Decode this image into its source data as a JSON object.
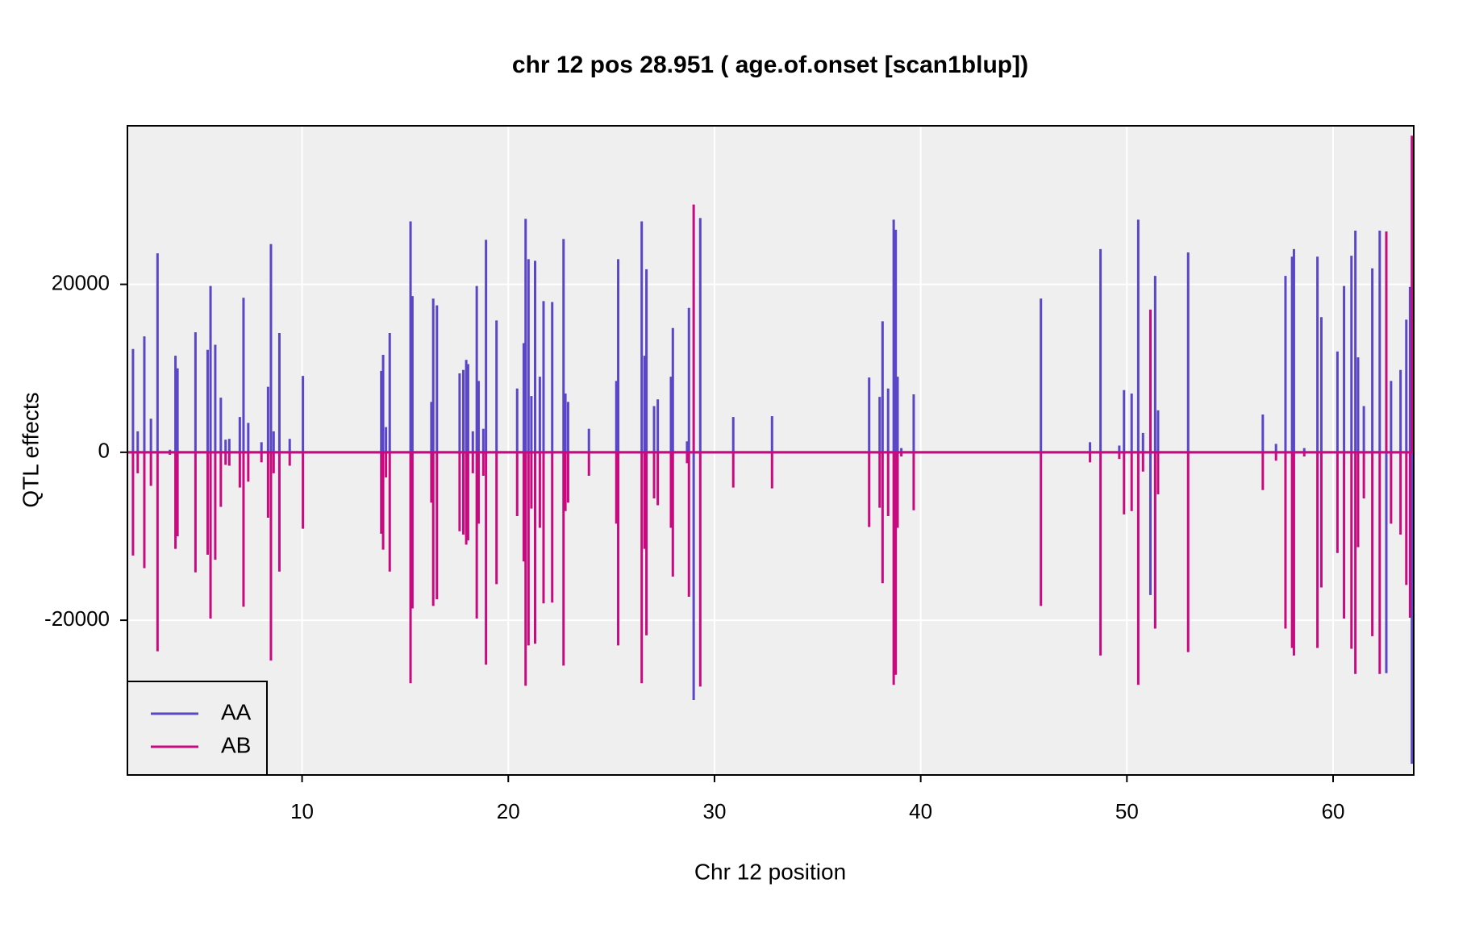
{
  "chart_data": {
    "type": "spike",
    "title": "chr 12 pos 28.951 ( age.of.onset  [scan1blup])",
    "xlabel": "Chr 12 position",
    "ylabel": "QTL effects",
    "x": [
      1.8,
      2.03,
      2.35,
      2.67,
      2.99,
      3.59,
      3.86,
      3.96,
      4.83,
      5.42,
      5.56,
      5.79,
      6.06,
      6.29,
      6.47,
      6.98,
      7.16,
      7.39,
      8.03,
      8.35,
      8.49,
      8.62,
      8.9,
      9.4,
      10.04,
      13.84,
      13.93,
      14.07,
      14.25,
      15.26,
      15.35,
      16.27,
      16.36,
      16.54,
      17.64,
      17.82,
      17.96,
      18.05,
      18.28,
      18.47,
      18.56,
      18.79,
      18.92,
      19.43,
      20.43,
      20.75,
      20.84,
      20.98,
      21.12,
      21.3,
      21.53,
      21.71,
      22.13,
      22.68,
      22.77,
      22.9,
      23.91,
      25.24,
      25.33,
      26.47,
      26.61,
      26.7,
      27.07,
      27.25,
      27.89,
      27.98,
      28.67,
      28.76,
      28.99,
      29.31,
      30.91,
      32.79,
      37.5,
      38.01,
      38.15,
      38.42,
      38.69,
      38.79,
      38.88,
      39.06,
      39.66,
      45.83,
      48.21,
      48.72,
      49.63,
      49.86,
      50.23,
      50.55,
      50.78,
      51.14,
      51.37,
      51.51,
      52.97,
      56.59,
      57.23,
      57.69,
      58.01,
      58.1,
      58.6,
      59.24,
      59.43,
      60.21,
      60.53,
      60.89,
      61.08,
      61.21,
      61.49,
      61.9,
      62.26,
      62.58,
      62.81,
      63.27,
      63.55,
      63.73,
      63.82
    ],
    "series": [
      {
        "name": "AA",
        "color": "#5a46c6",
        "values": [
          12300,
          2500,
          13800,
          4000,
          23700,
          300,
          11500,
          10000,
          14300,
          12200,
          19800,
          12800,
          6500,
          1500,
          1600,
          4200,
          18400,
          3500,
          1200,
          7800,
          24800,
          2500,
          14200,
          1600,
          9100,
          9700,
          11600,
          3000,
          14200,
          27500,
          18600,
          6000,
          18300,
          17500,
          9400,
          9800,
          11000,
          10500,
          2500,
          19800,
          8500,
          2800,
          25300,
          15700,
          7600,
          13000,
          27800,
          23000,
          6700,
          22800,
          9000,
          18000,
          17900,
          25400,
          7000,
          6000,
          2800,
          8500,
          23000,
          27500,
          11500,
          21800,
          5500,
          6300,
          9000,
          14800,
          1300,
          17200,
          -29500,
          27900,
          4200,
          4300,
          8900,
          6600,
          15600,
          7600,
          27700,
          26500,
          9000,
          500,
          6900,
          18300,
          1200,
          24200,
          800,
          7400,
          7000,
          27700,
          2300,
          -17000,
          21000,
          5000,
          23800,
          4500,
          1000,
          21000,
          23300,
          24200,
          500,
          23300,
          16100,
          12000,
          19800,
          23400,
          26400,
          11300,
          5500,
          21900,
          26400,
          -26300,
          8500,
          9800,
          15800,
          19700,
          -37100
        ]
      },
      {
        "name": "AB",
        "color": "#c8097f",
        "values": [
          -12300,
          -2500,
          -13800,
          -4000,
          -23700,
          -300,
          -11500,
          -10000,
          -14300,
          -12200,
          -19800,
          -12800,
          -6500,
          -1500,
          -1600,
          -4200,
          -18400,
          -3500,
          -1200,
          -7800,
          -24800,
          -2500,
          -14200,
          -1600,
          -9100,
          -9700,
          -11600,
          -3000,
          -14200,
          -27500,
          -18600,
          -6000,
          -18300,
          -17500,
          -9400,
          -9800,
          -11000,
          -10500,
          -2500,
          -19800,
          -8500,
          -2800,
          -25300,
          -15700,
          -7600,
          -13000,
          -27800,
          -23000,
          -6700,
          -22800,
          -9000,
          -18000,
          -17900,
          -25400,
          -7000,
          -6000,
          -2800,
          -8500,
          -23000,
          -27500,
          -11500,
          -21800,
          -5500,
          -6300,
          -9000,
          -14800,
          -1300,
          -17200,
          29500,
          -27900,
          -4200,
          -4300,
          -8900,
          -6600,
          -15600,
          -7600,
          -27700,
          -26500,
          -9000,
          -500,
          -6900,
          -18300,
          -1200,
          -24200,
          -800,
          -7400,
          -7000,
          -27700,
          -2300,
          17000,
          -21000,
          -5000,
          -23800,
          -4500,
          -1000,
          -21000,
          -23300,
          -24200,
          -500,
          -23300,
          -16100,
          -12000,
          -19800,
          -23400,
          -26400,
          -11300,
          -5500,
          -21900,
          -26400,
          26300,
          -8500,
          -9800,
          -15800,
          -19700,
          37700
        ]
      }
    ],
    "xlim": [
      1.53,
      63.91
    ],
    "ylim": [
      -38430,
      38880
    ],
    "xticks": [
      10,
      20,
      30,
      40,
      50,
      60
    ],
    "yticks": [
      -20000,
      0,
      20000
    ],
    "grid": true,
    "legend": "bottom-left"
  }
}
